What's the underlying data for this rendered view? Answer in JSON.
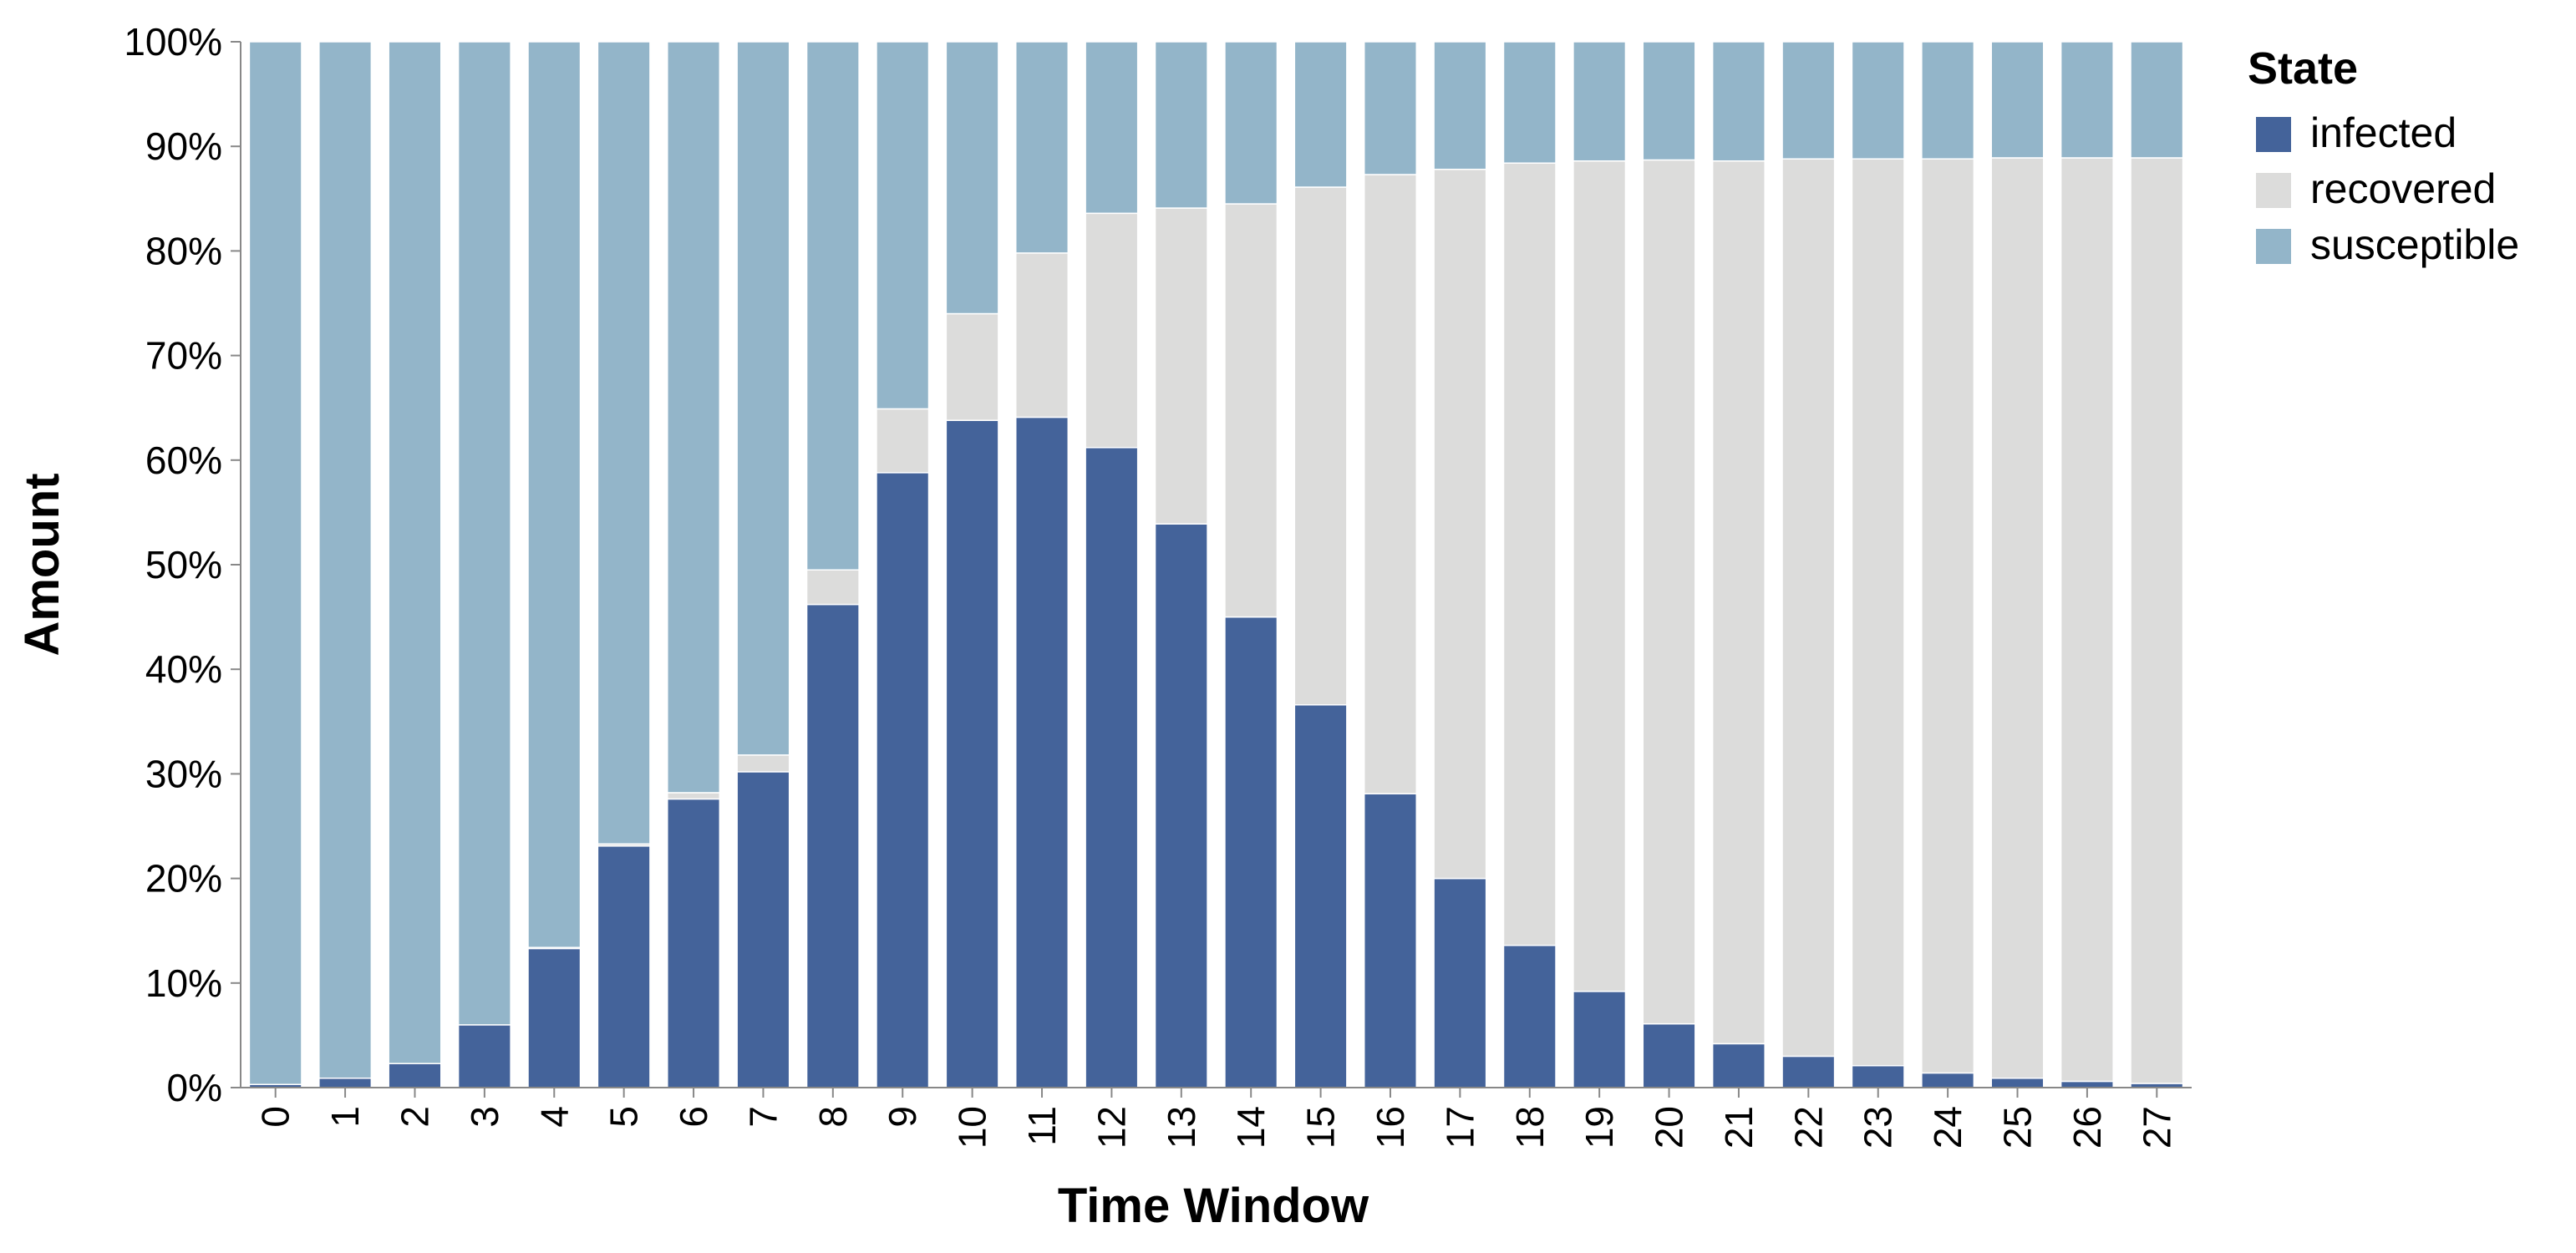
{
  "chart_data": {
    "type": "bar",
    "stacked": true,
    "normalized": true,
    "xlabel": "Time Window",
    "ylabel": "Amount",
    "categories": [
      "0",
      "1",
      "2",
      "3",
      "4",
      "5",
      "6",
      "7",
      "8",
      "9",
      "10",
      "11",
      "12",
      "13",
      "14",
      "15",
      "16",
      "17",
      "18",
      "19",
      "20",
      "21",
      "22",
      "23",
      "24",
      "25",
      "26",
      "27"
    ],
    "ylim": [
      0,
      100
    ],
    "y_ticks": [
      "0%",
      "10%",
      "20%",
      "30%",
      "40%",
      "50%",
      "60%",
      "70%",
      "80%",
      "90%",
      "100%"
    ],
    "legend": {
      "title": "State",
      "position": "right"
    },
    "series": [
      {
        "name": "infected",
        "color": "#44639a",
        "values": [
          0.3,
          0.9,
          2.3,
          6.0,
          13.3,
          23.1,
          27.6,
          30.2,
          46.2,
          58.8,
          63.8,
          64.1,
          61.2,
          53.9,
          45.0,
          36.6,
          28.1,
          20.0,
          13.6,
          9.2,
          6.1,
          4.2,
          3.0,
          2.1,
          1.4,
          0.9,
          0.6,
          0.4
        ]
      },
      {
        "name": "recovered",
        "color": "#dcdcdb",
        "values": [
          0.0,
          0.0,
          0.0,
          0.0,
          0.1,
          0.2,
          0.6,
          1.6,
          3.3,
          6.1,
          10.2,
          15.7,
          22.4,
          30.2,
          39.5,
          49.5,
          59.2,
          67.8,
          74.8,
          79.4,
          82.6,
          84.4,
          85.8,
          86.7,
          87.4,
          88.0,
          88.3,
          88.5
        ]
      },
      {
        "name": "susceptible",
        "color": "#93b5c9",
        "values": [
          99.7,
          99.1,
          97.7,
          94.0,
          86.6,
          76.7,
          71.8,
          68.2,
          50.5,
          35.1,
          26.0,
          20.2,
          16.4,
          15.9,
          15.5,
          13.9,
          12.7,
          12.2,
          11.6,
          11.4,
          11.3,
          11.4,
          11.2,
          11.2,
          11.2,
          11.1,
          11.1,
          11.1
        ]
      }
    ]
  }
}
